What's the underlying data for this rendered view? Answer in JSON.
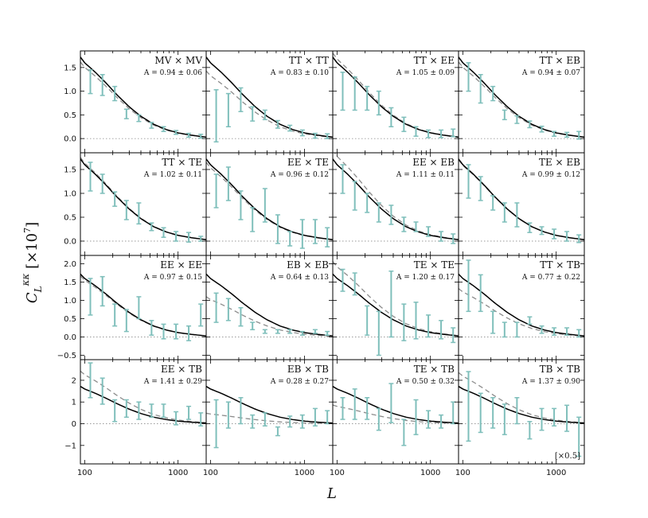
{
  "chart_data": {
    "type": "scatter",
    "xlabel": "L",
    "ylabel": "C_L^{κκ} [×10^7]",
    "xscale": "log",
    "xlim": [
      90,
      2000
    ],
    "x_ticks": [
      100,
      1000
    ],
    "x_tick_labels": [
      "100",
      "1000"
    ],
    "x_points": [
      115,
      155,
      210,
      280,
      380,
      520,
      700,
      950,
      1300,
      1750
    ],
    "theory": {
      "L": [
        90,
        100,
        130,
        170,
        220,
        300,
        400,
        550,
        750,
        1000,
        1400,
        2000
      ],
      "C": [
        1.72,
        1.6,
        1.4,
        1.17,
        0.93,
        0.67,
        0.47,
        0.3,
        0.19,
        0.12,
        0.07,
        0.03
      ]
    },
    "rows": [
      {
        "ylim": [
          -0.3,
          1.85
        ],
        "yticks": [
          0.0,
          0.5,
          1.0,
          1.5
        ],
        "ytick_labels": [
          "0.0",
          "0.5",
          "1.0",
          "1.5"
        ]
      },
      {
        "ylim": [
          -0.3,
          1.85
        ],
        "yticks": [
          0.0,
          0.5,
          1.0,
          1.5
        ],
        "ytick_labels": [
          "0.0",
          "0.5",
          "1.0",
          "1.5"
        ]
      },
      {
        "ylim": [
          -0.62,
          2.23
        ],
        "yticks": [
          -0.5,
          0.0,
          0.5,
          1.0,
          1.5,
          2.0
        ],
        "ytick_labels": [
          "−0.5",
          "0.0",
          "0.5",
          "1.0",
          "1.5",
          "2.0"
        ]
      },
      {
        "ylim": [
          -1.85,
          2.95
        ],
        "yticks": [
          -1,
          0,
          1,
          2
        ],
        "ytick_labels": [
          "−1",
          "0",
          "1",
          "2"
        ]
      }
    ],
    "panels": [
      {
        "label": "MV × MV",
        "amp": "A = 0.94 ± 0.06",
        "A": 0.94,
        "y": [
          1.2,
          1.13,
          0.95,
          0.52,
          0.43,
          0.28,
          0.2,
          0.13,
          0.07,
          0.05
        ],
        "err": [
          0.25,
          0.22,
          0.15,
          0.1,
          0.07,
          0.06,
          0.05,
          0.04,
          0.04,
          0.04
        ]
      },
      {
        "label": "TT × TT",
        "amp": "A = 0.83 ± 0.10",
        "A": 0.83,
        "y": [
          0.48,
          0.6,
          0.82,
          0.52,
          0.5,
          0.3,
          0.22,
          0.12,
          0.06,
          0.05
        ],
        "err": [
          0.55,
          0.35,
          0.25,
          0.15,
          0.1,
          0.08,
          0.06,
          0.06,
          0.05,
          0.05
        ]
      },
      {
        "label": "TT × EE",
        "amp": "A = 1.05 ± 0.09",
        "A": 1.05,
        "y": [
          1.0,
          0.95,
          0.85,
          0.75,
          0.45,
          0.3,
          0.15,
          0.1,
          0.1,
          0.12
        ],
        "err": [
          0.4,
          0.35,
          0.25,
          0.25,
          0.2,
          0.15,
          0.1,
          0.08,
          0.08,
          0.08
        ]
      },
      {
        "label": "TT × EB",
        "amp": "A = 0.94 ± 0.07",
        "A": 0.94,
        "y": [
          1.3,
          1.05,
          0.95,
          0.5,
          0.4,
          0.3,
          0.2,
          0.1,
          0.08,
          0.07
        ],
        "err": [
          0.3,
          0.3,
          0.15,
          0.1,
          0.08,
          0.07,
          0.06,
          0.05,
          0.05,
          0.08
        ]
      },
      {
        "label": "TT × TE",
        "amp": "A = 1.02 ± 0.11",
        "A": 1.02,
        "y": [
          1.35,
          1.2,
          0.88,
          0.65,
          0.58,
          0.3,
          0.18,
          0.1,
          0.08,
          0.05
        ],
        "err": [
          0.3,
          0.2,
          0.15,
          0.2,
          0.22,
          0.08,
          0.1,
          0.1,
          0.1,
          0.05
        ]
      },
      {
        "label": "EE × TE",
        "amp": "A = 0.96 ± 0.12",
        "A": 0.96,
        "y": [
          1.05,
          1.2,
          0.75,
          0.45,
          0.75,
          0.25,
          0.05,
          0.15,
          0.2,
          0.08
        ],
        "err": [
          0.35,
          0.35,
          0.3,
          0.25,
          0.35,
          0.3,
          0.15,
          0.3,
          0.25,
          0.2
        ]
      },
      {
        "label": "EE × EB",
        "amp": "A = 1.11 ± 0.11",
        "A": 1.11,
        "y": [
          1.3,
          0.95,
          0.8,
          0.6,
          0.55,
          0.35,
          0.3,
          0.2,
          0.1,
          0.05
        ],
        "err": [
          0.3,
          0.3,
          0.2,
          0.2,
          0.2,
          0.15,
          0.1,
          0.1,
          0.1,
          0.1
        ]
      },
      {
        "label": "TE × EB",
        "amp": "A = 0.99 ± 0.12",
        "A": 0.99,
        "y": [
          1.25,
          1.1,
          0.8,
          0.6,
          0.55,
          0.28,
          0.22,
          0.15,
          0.1,
          0.05
        ],
        "err": [
          0.35,
          0.25,
          0.15,
          0.2,
          0.25,
          0.1,
          0.08,
          0.1,
          0.1,
          0.08
        ]
      },
      {
        "label": "EE × EE",
        "amp": "A = 0.97 ± 0.15",
        "A": 0.97,
        "y": [
          1.1,
          1.25,
          0.6,
          0.45,
          0.8,
          0.25,
          0.15,
          0.15,
          0.1,
          0.6
        ],
        "err": [
          0.5,
          0.4,
          0.3,
          0.3,
          0.3,
          0.2,
          0.2,
          0.2,
          0.2,
          0.3
        ]
      },
      {
        "label": "EB × EB",
        "amp": "A = 0.64 ± 0.13",
        "A": 0.64,
        "y": [
          0.8,
          0.75,
          0.55,
          0.3,
          0.15,
          0.15,
          0.15,
          0.1,
          0.15,
          0.1
        ],
        "err": [
          0.4,
          0.3,
          0.25,
          0.1,
          0.05,
          0.05,
          0.05,
          0.05,
          0.05,
          0.05
        ]
      },
      {
        "label": "TE × TE",
        "amp": "A = 1.20 ± 0.17",
        "A": 1.2,
        "y": [
          1.55,
          1.45,
          0.45,
          0.1,
          0.9,
          0.4,
          0.45,
          0.3,
          0.2,
          0.05
        ],
        "err": [
          0.3,
          0.3,
          0.4,
          0.6,
          0.9,
          0.5,
          0.5,
          0.3,
          0.25,
          0.2
        ]
      },
      {
        "label": "TT × TB",
        "amp": "A = 0.77 ± 0.22",
        "A": 0.77,
        "y": [
          1.4,
          1.2,
          0.4,
          0.2,
          0.2,
          0.45,
          0.2,
          0.15,
          0.15,
          0.1
        ],
        "err": [
          0.7,
          0.5,
          0.3,
          0.2,
          0.2,
          0.1,
          0.1,
          0.1,
          0.1,
          0.1
        ]
      },
      {
        "label": "EE × TB",
        "amp": "A = 1.41 ± 0.29",
        "A": 1.41,
        "y": [
          2.0,
          1.5,
          0.6,
          0.7,
          0.6,
          0.6,
          0.6,
          0.25,
          0.5,
          0.2
        ],
        "err": [
          0.8,
          0.6,
          0.5,
          0.4,
          0.4,
          0.3,
          0.3,
          0.3,
          0.3,
          0.3
        ]
      },
      {
        "label": "EB × TB",
        "amp": "A = 0.28 ± 0.27",
        "A": 0.28,
        "y": [
          0.0,
          0.4,
          0.6,
          0.1,
          0.2,
          -0.35,
          0.1,
          0.1,
          0.3,
          0.3
        ],
        "err": [
          1.1,
          0.6,
          0.6,
          0.3,
          0.3,
          0.2,
          0.25,
          0.3,
          0.4,
          0.3
        ]
      },
      {
        "label": "TE × TB",
        "amp": "A = 0.50 ± 0.32",
        "A": 0.5,
        "y": [
          0.7,
          0.9,
          0.7,
          0.2,
          0.95,
          -0.4,
          0.3,
          0.2,
          0.1,
          0.5
        ],
        "err": [
          0.5,
          0.7,
          0.5,
          0.5,
          0.9,
          0.6,
          0.8,
          0.4,
          0.3,
          0.5
        ]
      },
      {
        "label": "TB × TB",
        "amp": "A = 1.37 ± 0.90",
        "A": 1.37,
        "y": [
          0.8,
          0.5,
          0.5,
          0.2,
          0.6,
          -0.3,
          0.2,
          0.3,
          0.25,
          -0.6
        ],
        "err": [
          1.6,
          0.9,
          0.7,
          0.7,
          0.6,
          0.4,
          0.5,
          0.4,
          0.6,
          0.9
        ],
        "note": "[×0.5]"
      }
    ],
    "colors": {
      "data": "#7fbfbb",
      "theory": "#000000",
      "fit": "#8c8c8c",
      "zero": "#999999"
    }
  }
}
